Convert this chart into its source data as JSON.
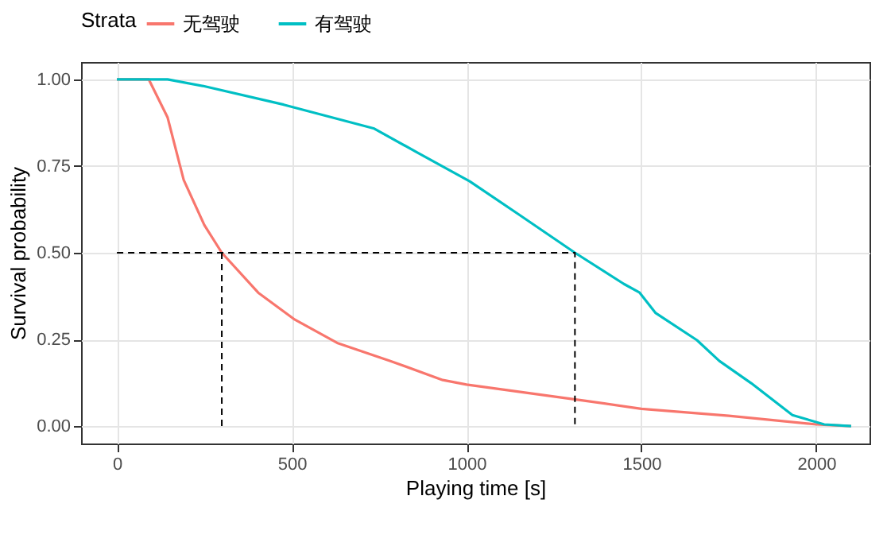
{
  "chart_data": {
    "type": "line",
    "xlabel": "Playing time [s]",
    "ylabel": "Survival probability",
    "legend_title": "Strata",
    "legend": "top",
    "grid": true,
    "xlim": [
      -102.5,
      2152.5
    ],
    "xticks": [
      0,
      500,
      1000,
      1500,
      2000
    ],
    "ylim": [
      -0.05,
      1.05
    ],
    "yticks": [
      {
        "value": 0,
        "label": "0.00"
      },
      {
        "value": 0.25,
        "label": "0.25"
      },
      {
        "value": 0.5,
        "label": "0.50"
      },
      {
        "value": 0.75,
        "label": "0.75"
      },
      {
        "value": 1,
        "label": "1.00"
      }
    ],
    "series": [
      {
        "name": "无驾驶",
        "color": "#f8766d",
        "x": [
          0,
          91,
          145,
          191,
          250,
          300,
          404,
          509,
          630,
          782,
          932,
          1000,
          1341,
          1500,
          1750,
          2000,
          2100
        ],
        "values": [
          1,
          1,
          0.89,
          0.71,
          0.58,
          0.5,
          0.385,
          0.307,
          0.24,
          0.188,
          0.133,
          0.12,
          0.073,
          0.05,
          0.03,
          0.005,
          0.0
        ]
      },
      {
        "name": "有驾驶",
        "color": "#00bfc4",
        "x": [
          0,
          145,
          250,
          477,
          736,
          859,
          1009,
          1150,
          1310,
          1450,
          1495,
          1541,
          1659,
          1723,
          1814,
          1932,
          2023,
          2100
        ],
        "values": [
          1,
          1,
          0.98,
          0.927,
          0.858,
          0.789,
          0.706,
          0.61,
          0.5,
          0.41,
          0.385,
          0.326,
          0.248,
          0.188,
          0.124,
          0.032,
          0.005,
          0.0
        ]
      },
      {
        "type": "line",
        "color": "#000000",
        "line_style": "dashed",
        "x": [
          0,
          1310,
          1310
        ],
        "values": [
          0.5,
          0.5,
          0
        ]
      },
      {
        "type": "line",
        "color": "#000000",
        "line_style": "dashed",
        "x": [
          300,
          300
        ],
        "values": [
          0.5,
          0
        ]
      }
    ]
  }
}
